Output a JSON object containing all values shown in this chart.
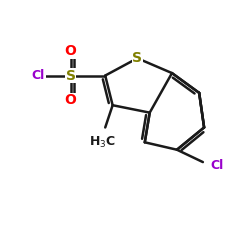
{
  "bg_color": "#ffffff",
  "bond_color": "#1a1a1a",
  "bond_lw": 1.8,
  "S_color": "#808000",
  "Cl_color": "#9900cc",
  "O_color": "#ff0000",
  "CH3_color": "#1a1a1a",
  "figsize": [
    2.5,
    2.5
  ],
  "dpi": 100,
  "xlim": [
    0,
    10
  ],
  "ylim": [
    0,
    10
  ]
}
